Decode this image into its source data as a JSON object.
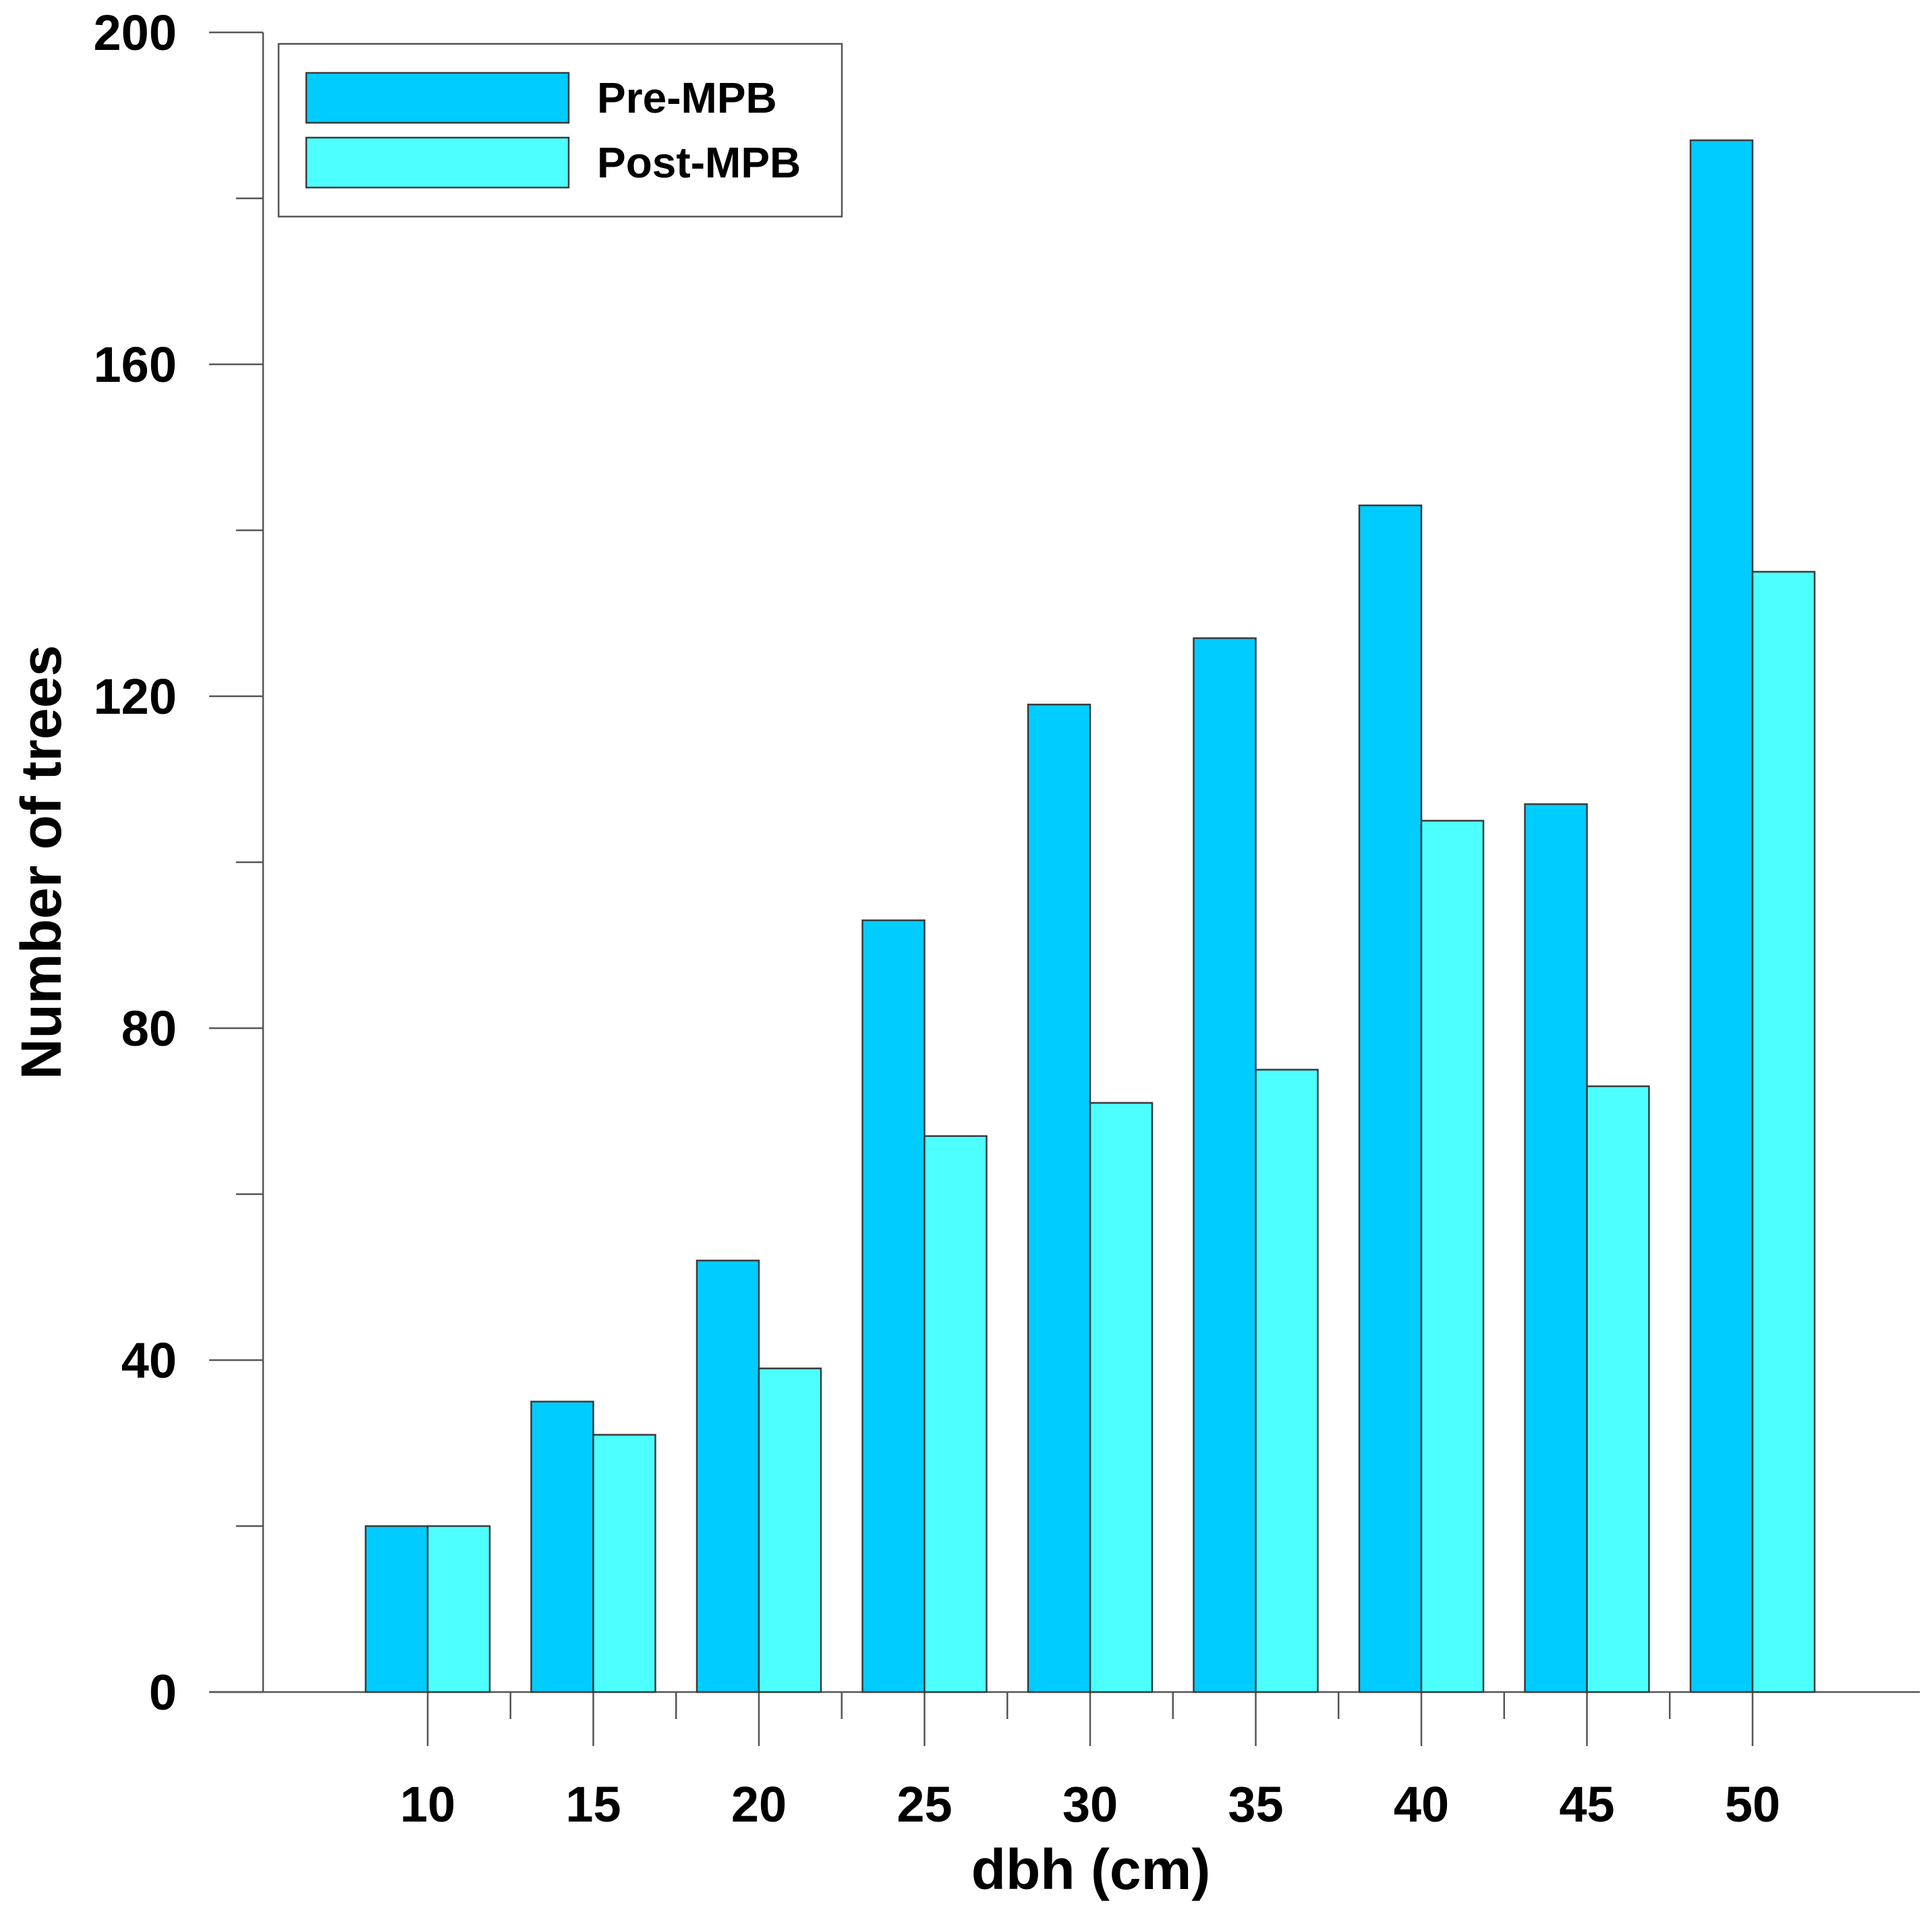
{
  "chart_data": {
    "type": "bar",
    "xlabel": "dbh (cm)",
    "ylabel": "Number of trees",
    "categories": [
      "10",
      "15",
      "20",
      "25",
      "30",
      "35",
      "40",
      "45",
      "50"
    ],
    "series": [
      {
        "name": "Pre-MPB",
        "color": "#00ccff",
        "values": [
          20,
          35,
          52,
          93,
          119,
          127,
          143,
          107,
          187
        ]
      },
      {
        "name": "Post-MPB",
        "color": "#4dffff",
        "values": [
          20,
          31,
          39,
          67,
          71,
          75,
          105,
          73,
          135
        ]
      }
    ],
    "ylim": [
      0,
      200
    ],
    "yticks": [
      0,
      40,
      80,
      120,
      160,
      200
    ],
    "yminor_step": 20,
    "grid": false,
    "legend": "top-left"
  }
}
